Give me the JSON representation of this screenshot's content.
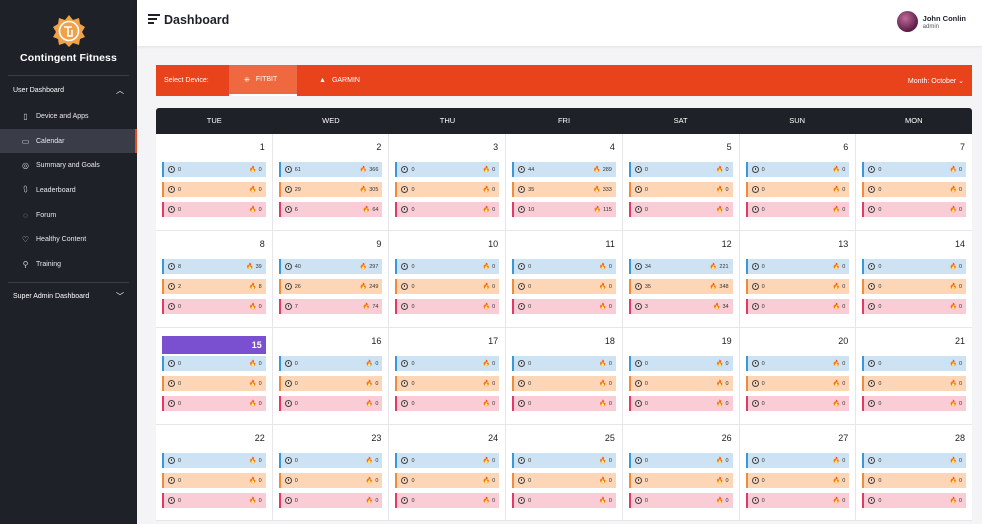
{
  "app": {
    "name": "Contingent Fitness"
  },
  "sidebar": {
    "section_user": "User Dashboard",
    "items": [
      {
        "label": "Device and Apps",
        "icon": "tablet-icon"
      },
      {
        "label": "Calendar",
        "icon": "calendar-icon",
        "active": true
      },
      {
        "label": "Summary and Goals",
        "icon": "target-icon"
      },
      {
        "label": "Leaderboard",
        "icon": "podium-icon"
      },
      {
        "label": "Forum",
        "icon": "chat-icon"
      },
      {
        "label": "Healthy Content",
        "icon": "heart-icon"
      },
      {
        "label": "Training",
        "icon": "person-icon"
      }
    ],
    "section_admin": "Super Admin Dashboard"
  },
  "header": {
    "title": "Dashboard"
  },
  "user": {
    "name": "John Conlin",
    "role": "admin"
  },
  "device_bar": {
    "select_label": "Select Device:",
    "tabs": [
      {
        "label": "FITBIT",
        "active": true
      },
      {
        "label": "GARMIN",
        "active": false
      }
    ],
    "month_label": "Month:",
    "month_value": "October"
  },
  "calendar": {
    "weekdays": [
      "TUE",
      "WED",
      "THU",
      "FRI",
      "SAT",
      "SUN",
      "MON"
    ],
    "today": 15,
    "weeks": [
      [
        {
          "day": "1",
          "stats": [
            [
              "0",
              "0"
            ],
            [
              "0",
              "0"
            ],
            [
              "0",
              "0"
            ]
          ]
        },
        {
          "day": "2",
          "stats": [
            [
              "61",
              "366"
            ],
            [
              "29",
              "305"
            ],
            [
              "6",
              "64"
            ]
          ]
        },
        {
          "day": "3",
          "stats": [
            [
              "0",
              "0"
            ],
            [
              "0",
              "0"
            ],
            [
              "0",
              "0"
            ]
          ]
        },
        {
          "day": "4",
          "stats": [
            [
              "44",
              "289"
            ],
            [
              "35",
              "333"
            ],
            [
              "10",
              "115"
            ]
          ]
        },
        {
          "day": "5",
          "stats": [
            [
              "0",
              "0"
            ],
            [
              "0",
              "0"
            ],
            [
              "0",
              "0"
            ]
          ]
        },
        {
          "day": "6",
          "stats": [
            [
              "0",
              "0"
            ],
            [
              "0",
              "0"
            ],
            [
              "0",
              "0"
            ]
          ]
        },
        {
          "day": "7",
          "stats": [
            [
              "0",
              "0"
            ],
            [
              "0",
              "0"
            ],
            [
              "0",
              "0"
            ]
          ]
        }
      ],
      [
        {
          "day": "8",
          "stats": [
            [
              "8",
              "39"
            ],
            [
              "2",
              "8"
            ],
            [
              "0",
              "0"
            ]
          ]
        },
        {
          "day": "9",
          "stats": [
            [
              "40",
              "297"
            ],
            [
              "26",
              "249"
            ],
            [
              "7",
              "74"
            ]
          ]
        },
        {
          "day": "10",
          "stats": [
            [
              "0",
              "0"
            ],
            [
              "0",
              "0"
            ],
            [
              "0",
              "0"
            ]
          ]
        },
        {
          "day": "11",
          "stats": [
            [
              "0",
              "0"
            ],
            [
              "0",
              "0"
            ],
            [
              "0",
              "0"
            ]
          ]
        },
        {
          "day": "12",
          "stats": [
            [
              "34",
              "221"
            ],
            [
              "35",
              "348"
            ],
            [
              "3",
              "34"
            ]
          ]
        },
        {
          "day": "13",
          "stats": [
            [
              "0",
              "0"
            ],
            [
              "0",
              "0"
            ],
            [
              "0",
              "0"
            ]
          ]
        },
        {
          "day": "14",
          "stats": [
            [
              "0",
              "0"
            ],
            [
              "0",
              "0"
            ],
            [
              "0",
              "0"
            ]
          ]
        }
      ],
      [
        {
          "day": "15",
          "stats": [
            [
              "0",
              "0"
            ],
            [
              "0",
              "0"
            ],
            [
              "0",
              "0"
            ]
          ]
        },
        {
          "day": "16",
          "stats": [
            [
              "0",
              "0"
            ],
            [
              "0",
              "0"
            ],
            [
              "0",
              "0"
            ]
          ]
        },
        {
          "day": "17",
          "stats": [
            [
              "0",
              "0"
            ],
            [
              "0",
              "0"
            ],
            [
              "0",
              "0"
            ]
          ]
        },
        {
          "day": "18",
          "stats": [
            [
              "0",
              "0"
            ],
            [
              "0",
              "0"
            ],
            [
              "0",
              "0"
            ]
          ]
        },
        {
          "day": "19",
          "stats": [
            [
              "0",
              "0"
            ],
            [
              "0",
              "0"
            ],
            [
              "0",
              "0"
            ]
          ]
        },
        {
          "day": "20",
          "stats": [
            [
              "0",
              "0"
            ],
            [
              "0",
              "0"
            ],
            [
              "0",
              "0"
            ]
          ]
        },
        {
          "day": "21",
          "stats": [
            [
              "0",
              "0"
            ],
            [
              "0",
              "0"
            ],
            [
              "0",
              "0"
            ]
          ]
        }
      ],
      [
        {
          "day": "22",
          "stats": [
            [
              "0",
              "0"
            ],
            [
              "0",
              "0"
            ],
            [
              "0",
              "0"
            ]
          ]
        },
        {
          "day": "23",
          "stats": [
            [
              "0",
              "0"
            ],
            [
              "0",
              "0"
            ],
            [
              "0",
              "0"
            ]
          ]
        },
        {
          "day": "24",
          "stats": [
            [
              "0",
              "0"
            ],
            [
              "0",
              "0"
            ],
            [
              "0",
              "0"
            ]
          ]
        },
        {
          "day": "25",
          "stats": [
            [
              "0",
              "0"
            ],
            [
              "0",
              "0"
            ],
            [
              "0",
              "0"
            ]
          ]
        },
        {
          "day": "26",
          "stats": [
            [
              "0",
              "0"
            ],
            [
              "0",
              "0"
            ],
            [
              "0",
              "0"
            ]
          ]
        },
        {
          "day": "27",
          "stats": [
            [
              "0",
              "0"
            ],
            [
              "0",
              "0"
            ],
            [
              "0",
              "0"
            ]
          ]
        },
        {
          "day": "28",
          "stats": [
            [
              "0",
              "0"
            ],
            [
              "0",
              "0"
            ],
            [
              "0",
              "0"
            ]
          ]
        }
      ]
    ]
  },
  "colors": {
    "accent": "#e8431a",
    "sidebar": "#1f2129",
    "today": "#7a4fd0"
  }
}
